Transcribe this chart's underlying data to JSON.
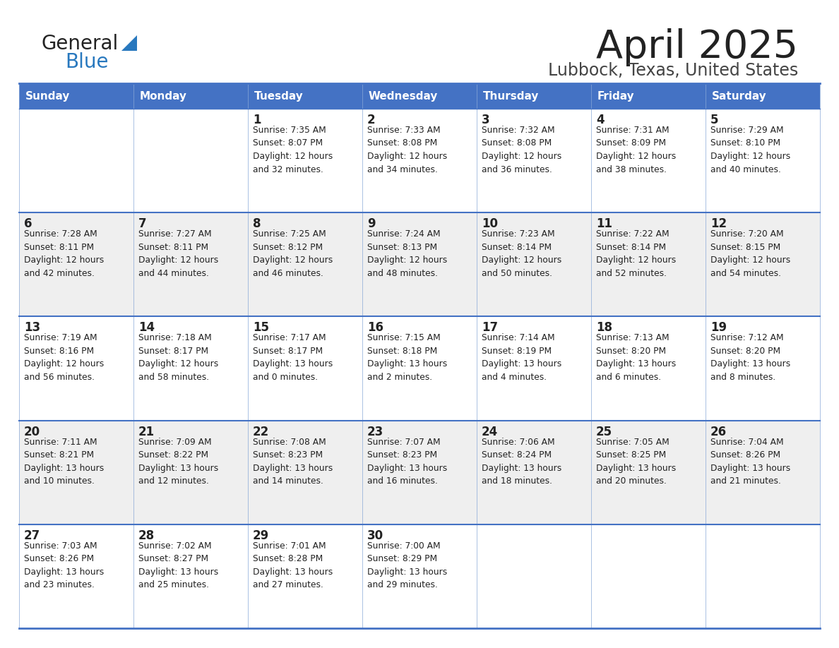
{
  "title": "April 2025",
  "subtitle": "Lubbock, Texas, United States",
  "header_bg": "#4472C4",
  "header_text": "#FFFFFF",
  "days_of_week": [
    "Sunday",
    "Monday",
    "Tuesday",
    "Wednesday",
    "Thursday",
    "Friday",
    "Saturday"
  ],
  "weeks": [
    [
      {
        "day": "",
        "info": ""
      },
      {
        "day": "",
        "info": ""
      },
      {
        "day": "1",
        "info": "Sunrise: 7:35 AM\nSunset: 8:07 PM\nDaylight: 12 hours\nand 32 minutes."
      },
      {
        "day": "2",
        "info": "Sunrise: 7:33 AM\nSunset: 8:08 PM\nDaylight: 12 hours\nand 34 minutes."
      },
      {
        "day": "3",
        "info": "Sunrise: 7:32 AM\nSunset: 8:08 PM\nDaylight: 12 hours\nand 36 minutes."
      },
      {
        "day": "4",
        "info": "Sunrise: 7:31 AM\nSunset: 8:09 PM\nDaylight: 12 hours\nand 38 minutes."
      },
      {
        "day": "5",
        "info": "Sunrise: 7:29 AM\nSunset: 8:10 PM\nDaylight: 12 hours\nand 40 minutes."
      }
    ],
    [
      {
        "day": "6",
        "info": "Sunrise: 7:28 AM\nSunset: 8:11 PM\nDaylight: 12 hours\nand 42 minutes."
      },
      {
        "day": "7",
        "info": "Sunrise: 7:27 AM\nSunset: 8:11 PM\nDaylight: 12 hours\nand 44 minutes."
      },
      {
        "day": "8",
        "info": "Sunrise: 7:25 AM\nSunset: 8:12 PM\nDaylight: 12 hours\nand 46 minutes."
      },
      {
        "day": "9",
        "info": "Sunrise: 7:24 AM\nSunset: 8:13 PM\nDaylight: 12 hours\nand 48 minutes."
      },
      {
        "day": "10",
        "info": "Sunrise: 7:23 AM\nSunset: 8:14 PM\nDaylight: 12 hours\nand 50 minutes."
      },
      {
        "day": "11",
        "info": "Sunrise: 7:22 AM\nSunset: 8:14 PM\nDaylight: 12 hours\nand 52 minutes."
      },
      {
        "day": "12",
        "info": "Sunrise: 7:20 AM\nSunset: 8:15 PM\nDaylight: 12 hours\nand 54 minutes."
      }
    ],
    [
      {
        "day": "13",
        "info": "Sunrise: 7:19 AM\nSunset: 8:16 PM\nDaylight: 12 hours\nand 56 minutes."
      },
      {
        "day": "14",
        "info": "Sunrise: 7:18 AM\nSunset: 8:17 PM\nDaylight: 12 hours\nand 58 minutes."
      },
      {
        "day": "15",
        "info": "Sunrise: 7:17 AM\nSunset: 8:17 PM\nDaylight: 13 hours\nand 0 minutes."
      },
      {
        "day": "16",
        "info": "Sunrise: 7:15 AM\nSunset: 8:18 PM\nDaylight: 13 hours\nand 2 minutes."
      },
      {
        "day": "17",
        "info": "Sunrise: 7:14 AM\nSunset: 8:19 PM\nDaylight: 13 hours\nand 4 minutes."
      },
      {
        "day": "18",
        "info": "Sunrise: 7:13 AM\nSunset: 8:20 PM\nDaylight: 13 hours\nand 6 minutes."
      },
      {
        "day": "19",
        "info": "Sunrise: 7:12 AM\nSunset: 8:20 PM\nDaylight: 13 hours\nand 8 minutes."
      }
    ],
    [
      {
        "day": "20",
        "info": "Sunrise: 7:11 AM\nSunset: 8:21 PM\nDaylight: 13 hours\nand 10 minutes."
      },
      {
        "day": "21",
        "info": "Sunrise: 7:09 AM\nSunset: 8:22 PM\nDaylight: 13 hours\nand 12 minutes."
      },
      {
        "day": "22",
        "info": "Sunrise: 7:08 AM\nSunset: 8:23 PM\nDaylight: 13 hours\nand 14 minutes."
      },
      {
        "day": "23",
        "info": "Sunrise: 7:07 AM\nSunset: 8:23 PM\nDaylight: 13 hours\nand 16 minutes."
      },
      {
        "day": "24",
        "info": "Sunrise: 7:06 AM\nSunset: 8:24 PM\nDaylight: 13 hours\nand 18 minutes."
      },
      {
        "day": "25",
        "info": "Sunrise: 7:05 AM\nSunset: 8:25 PM\nDaylight: 13 hours\nand 20 minutes."
      },
      {
        "day": "26",
        "info": "Sunrise: 7:04 AM\nSunset: 8:26 PM\nDaylight: 13 hours\nand 21 minutes."
      }
    ],
    [
      {
        "day": "27",
        "info": "Sunrise: 7:03 AM\nSunset: 8:26 PM\nDaylight: 13 hours\nand 23 minutes."
      },
      {
        "day": "28",
        "info": "Sunrise: 7:02 AM\nSunset: 8:27 PM\nDaylight: 13 hours\nand 25 minutes."
      },
      {
        "day": "29",
        "info": "Sunrise: 7:01 AM\nSunset: 8:28 PM\nDaylight: 13 hours\nand 27 minutes."
      },
      {
        "day": "30",
        "info": "Sunrise: 7:00 AM\nSunset: 8:29 PM\nDaylight: 13 hours\nand 29 minutes."
      },
      {
        "day": "",
        "info": ""
      },
      {
        "day": "",
        "info": ""
      },
      {
        "day": "",
        "info": ""
      }
    ]
  ],
  "cell_bg_normal": "#FFFFFF",
  "cell_bg_alt": "#EFEFEF",
  "border_color": "#4472C4",
  "border_color_light": "#88A8D8",
  "day_num_color": "#222222",
  "info_color": "#222222",
  "logo_general_color": "#222222",
  "logo_blue_color": "#2878BE",
  "title_color": "#222222",
  "subtitle_color": "#444444"
}
